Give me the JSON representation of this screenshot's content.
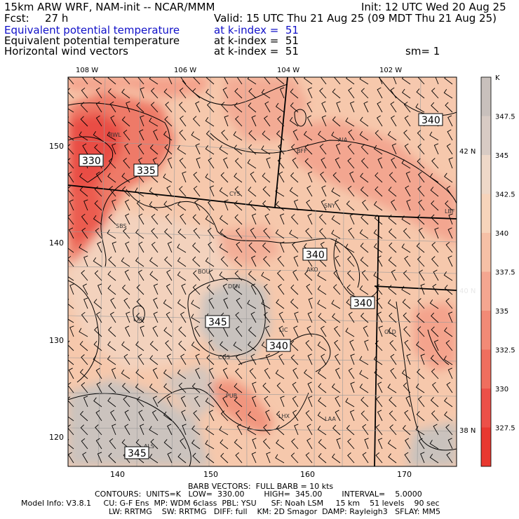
{
  "header": {
    "model": "15km ARW WRF, NAM-init -- NCAR/MMM",
    "init": "Init: 12 UTC Wed 20 Aug 25",
    "fcst_label": "Fcst:",
    "fcst_value": "27 h",
    "valid": "Valid: 15 UTC Thu 21 Aug 25 (09 MDT Thu 21 Aug 25)",
    "fields": [
      {
        "name": "Equivalent potential temperature",
        "level": "at k-index =  51",
        "extra": ""
      },
      {
        "name": "Equivalent potential temperature",
        "level": "at k-index =  51",
        "extra": ""
      },
      {
        "name": "Horizontal wind vectors",
        "level": "at k-index =  51",
        "extra": "sm= 1"
      }
    ]
  },
  "map": {
    "top_lon_labels": [
      "108 W",
      "106 W",
      "104 W",
      "102 W"
    ],
    "right_lat_labels": [
      "42 N",
      "40 N",
      "38 N"
    ],
    "x_ticks": [
      "140",
      "150",
      "160",
      "170"
    ],
    "y_ticks": [
      "150",
      "140",
      "130",
      "120"
    ],
    "stations": [
      "RWL",
      "BFF",
      "AIA",
      "CYS",
      "SNY",
      "LBF",
      "SBS",
      "BOU",
      "AKO",
      "DEN",
      "LXV",
      "LIC",
      "GLD",
      "COS",
      "PUB",
      "LHX",
      "LAA",
      "ALS"
    ],
    "contour_labels": [
      "330",
      "335",
      "340",
      "340",
      "340",
      "340",
      "345",
      "345"
    ]
  },
  "colorbar": {
    "unit": "K",
    "labels": [
      "347.5",
      "345",
      "342.5",
      "340",
      "337.5",
      "335",
      "332.5",
      "330",
      "327.5"
    ],
    "colors": [
      "#c8c0bc",
      "#d8cbc4",
      "#eed8c8",
      "#f7d4bb",
      "#f6c0a6",
      "#f4a690",
      "#f28a76",
      "#ef6e5e",
      "#ec5048",
      "#e83830"
    ]
  },
  "footer": {
    "barb": "BARB VECTORS:  FULL BARB = 10 kts",
    "contours": "CONTOURS:  UNITS=K   LOW=  330.00        HIGH=  345.00        INTERVAL=    5.0000",
    "model_info": "Model Info: V3.8.1     CU: G-F Ens  MP: WDM 6class  PBL: YSU      SF: Noah LSM     15 km    51 levels    90 sec",
    "model_info2": "LW: RRTMG    SW: RRTMG   DIFF: full    KM: 2D Smagor  DAMP: Rayleigh3   SFLAY: MM5"
  }
}
